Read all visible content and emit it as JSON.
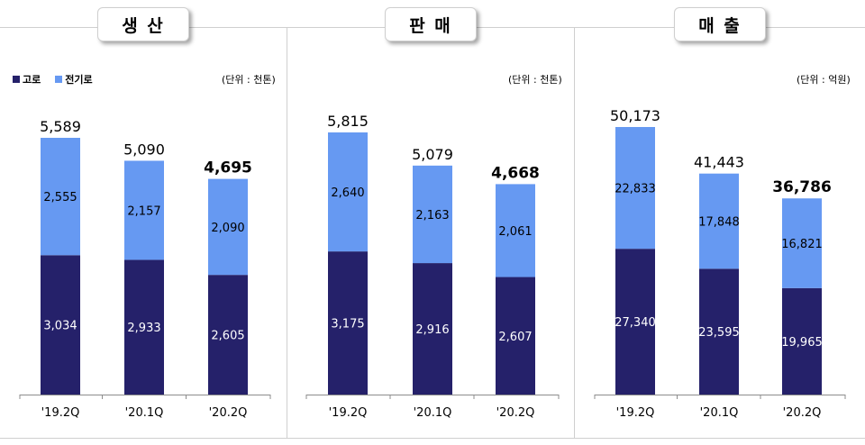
{
  "legend": {
    "items": [
      {
        "label": "고로",
        "color": "#25216a"
      },
      {
        "label": "전기로",
        "color": "#6699f2"
      }
    ]
  },
  "colors": {
    "bottom": "#25216a",
    "top": "#6699f2"
  },
  "panels": [
    {
      "title": "생 산",
      "unit": "(단위 : 천톤)"
    },
    {
      "title": "판 매",
      "unit": "(단위 : 천톤)"
    },
    {
      "title": "매 출",
      "unit": "(단위 : 억원)"
    }
  ],
  "chart_data": [
    {
      "type": "bar",
      "stacked": true,
      "title": "생 산",
      "unit": "(단위 : 천톤)",
      "categories": [
        "'19.2Q",
        "'20.1Q",
        "'20.2Q"
      ],
      "series": [
        {
          "name": "고로",
          "values": [
            3034,
            2933,
            2605
          ]
        },
        {
          "name": "전기로",
          "values": [
            2555,
            2157,
            2090
          ]
        }
      ],
      "totals": [
        5589,
        5090,
        4695
      ],
      "total_labels": [
        "5,589",
        "5,090",
        "4,695"
      ],
      "segment_labels": [
        [
          "3,034",
          "2,933",
          "2,605"
        ],
        [
          "2,555",
          "2,157",
          "2,090"
        ]
      ],
      "legend": "top-left"
    },
    {
      "type": "bar",
      "stacked": true,
      "title": "판 매",
      "unit": "(단위 : 천톤)",
      "categories": [
        "'19.2Q",
        "'20.1Q",
        "'20.2Q"
      ],
      "series": [
        {
          "name": "고로",
          "values": [
            3175,
            2916,
            2607
          ]
        },
        {
          "name": "전기로",
          "values": [
            2640,
            2163,
            2061
          ]
        }
      ],
      "totals": [
        5815,
        5079,
        4668
      ],
      "total_labels": [
        "5,815",
        "5,079",
        "4,668"
      ],
      "segment_labels": [
        [
          "3,175",
          "2,916",
          "2,607"
        ],
        [
          "2,640",
          "2,163",
          "2,061"
        ]
      ]
    },
    {
      "type": "bar",
      "stacked": true,
      "title": "매 출",
      "unit": "(단위 : 억원)",
      "categories": [
        "'19.2Q",
        "'20.1Q",
        "'20.2Q"
      ],
      "series": [
        {
          "name": "고로",
          "values": [
            27340,
            23595,
            19965
          ]
        },
        {
          "name": "전기로",
          "values": [
            22833,
            17848,
            16821
          ]
        }
      ],
      "totals": [
        50173,
        41443,
        36786
      ],
      "total_labels": [
        "50,173",
        "41,443",
        "36,786"
      ],
      "segment_labels": [
        [
          "27,340",
          "23,595",
          "19,965"
        ],
        [
          "22,833",
          "17,848",
          "16,821"
        ]
      ]
    }
  ]
}
